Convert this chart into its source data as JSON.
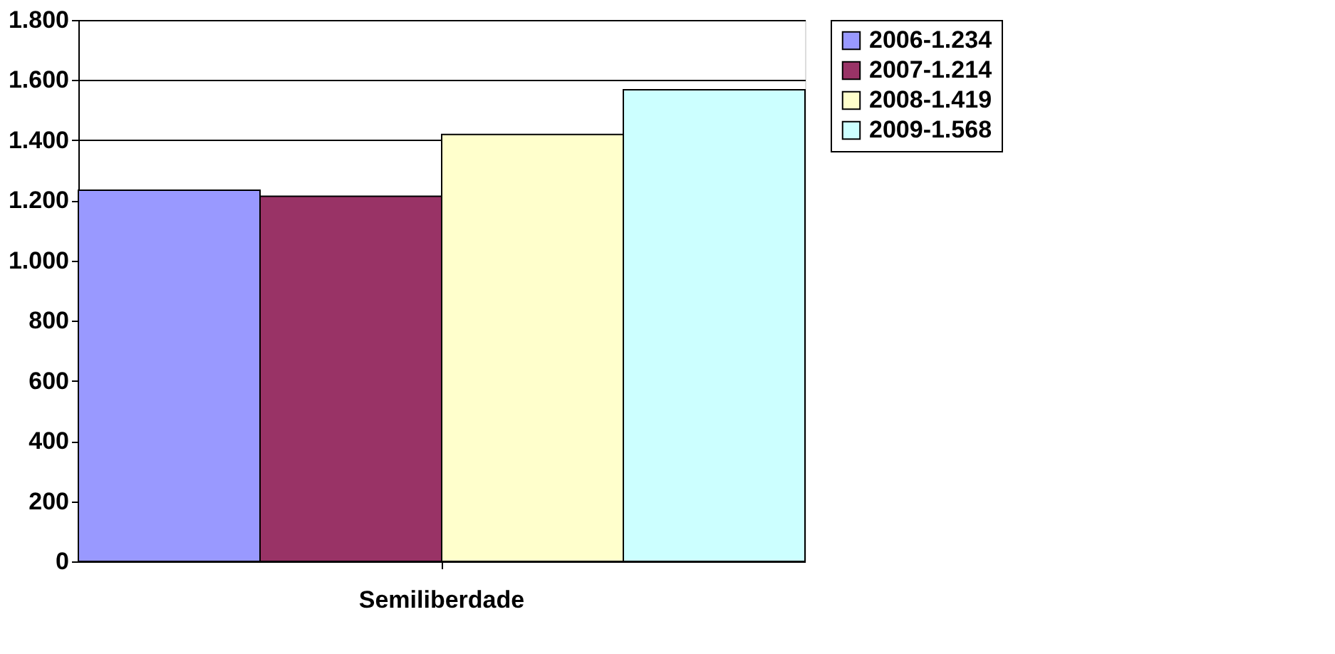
{
  "chart_data": {
    "type": "bar",
    "categories": [
      "Semiliberdade"
    ],
    "series": [
      {
        "name": "2006-1.234",
        "color": "#9999ff",
        "values": [
          1234
        ]
      },
      {
        "name": "2007-1.214",
        "color": "#993366",
        "values": [
          1214
        ]
      },
      {
        "name": "2008-1.419",
        "color": "#ffffcc",
        "values": [
          1419
        ]
      },
      {
        "name": "2009-1.568",
        "color": "#ccffff",
        "values": [
          1568
        ]
      }
    ],
    "ylim": [
      0,
      1800
    ],
    "yticks": [
      0,
      200,
      400,
      600,
      800,
      {
        "value": 1000,
        "label": "1.000"
      },
      {
        "value": 1200,
        "label": "1.200"
      },
      {
        "value": 1400,
        "label": "1.400"
      },
      {
        "value": 1600,
        "label": "1.600"
      },
      {
        "value": 1800,
        "label": "1.800"
      }
    ],
    "grid": "y",
    "legend": "right"
  }
}
